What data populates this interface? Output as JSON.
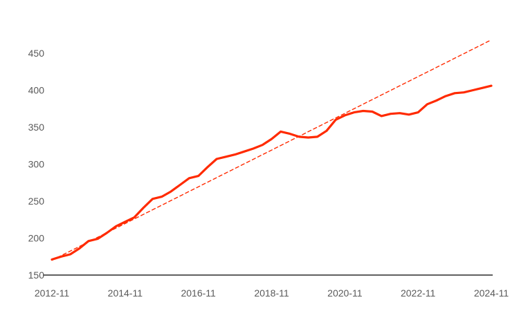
{
  "chart_data": {
    "type": "line",
    "title": "",
    "xlabel": "",
    "ylabel": "",
    "x_tick_labels": [
      "2012-11",
      "2014-11",
      "2016-11",
      "2018-11",
      "2020-11",
      "2022-11",
      "2024-11"
    ],
    "y_ticks": [
      150,
      200,
      250,
      300,
      350,
      400,
      450
    ],
    "xlim": [
      "2012-11",
      "2024-11"
    ],
    "ylim": [
      150,
      470
    ],
    "grid": false,
    "legend": "none",
    "series": [
      {
        "style": "solid",
        "color": "#ff2a00",
        "x": [
          "2012-11",
          "2013-02",
          "2013-05",
          "2013-08",
          "2013-11",
          "2014-02",
          "2014-05",
          "2014-08",
          "2014-11",
          "2015-02",
          "2015-05",
          "2015-08",
          "2015-11",
          "2016-02",
          "2016-05",
          "2016-08",
          "2016-11",
          "2017-02",
          "2017-05",
          "2017-08",
          "2017-11",
          "2018-02",
          "2018-05",
          "2018-08",
          "2018-11",
          "2019-02",
          "2019-05",
          "2019-08",
          "2019-11",
          "2020-02",
          "2020-05",
          "2020-08",
          "2020-11",
          "2021-02",
          "2021-05",
          "2021-08",
          "2021-11",
          "2022-02",
          "2022-05",
          "2022-08",
          "2022-11",
          "2023-02",
          "2023-05",
          "2023-08",
          "2023-11",
          "2024-02",
          "2024-05",
          "2024-08",
          "2024-11"
        ],
        "values": [
          171,
          175,
          178,
          186,
          196,
          199,
          207,
          216,
          222,
          228,
          241,
          253,
          256,
          263,
          272,
          281,
          284,
          296,
          307,
          310,
          313,
          317,
          321,
          326,
          334,
          344,
          341,
          337,
          336,
          337,
          345,
          360,
          366,
          370,
          372,
          371,
          365,
          368,
          369,
          367,
          370,
          381,
          386,
          392,
          396,
          397,
          400,
          403,
          406
        ]
      },
      {
        "style": "dashed",
        "color": "#ff2a00",
        "x": [
          "2012-11",
          "2024-11"
        ],
        "values": [
          170,
          468
        ]
      }
    ]
  }
}
